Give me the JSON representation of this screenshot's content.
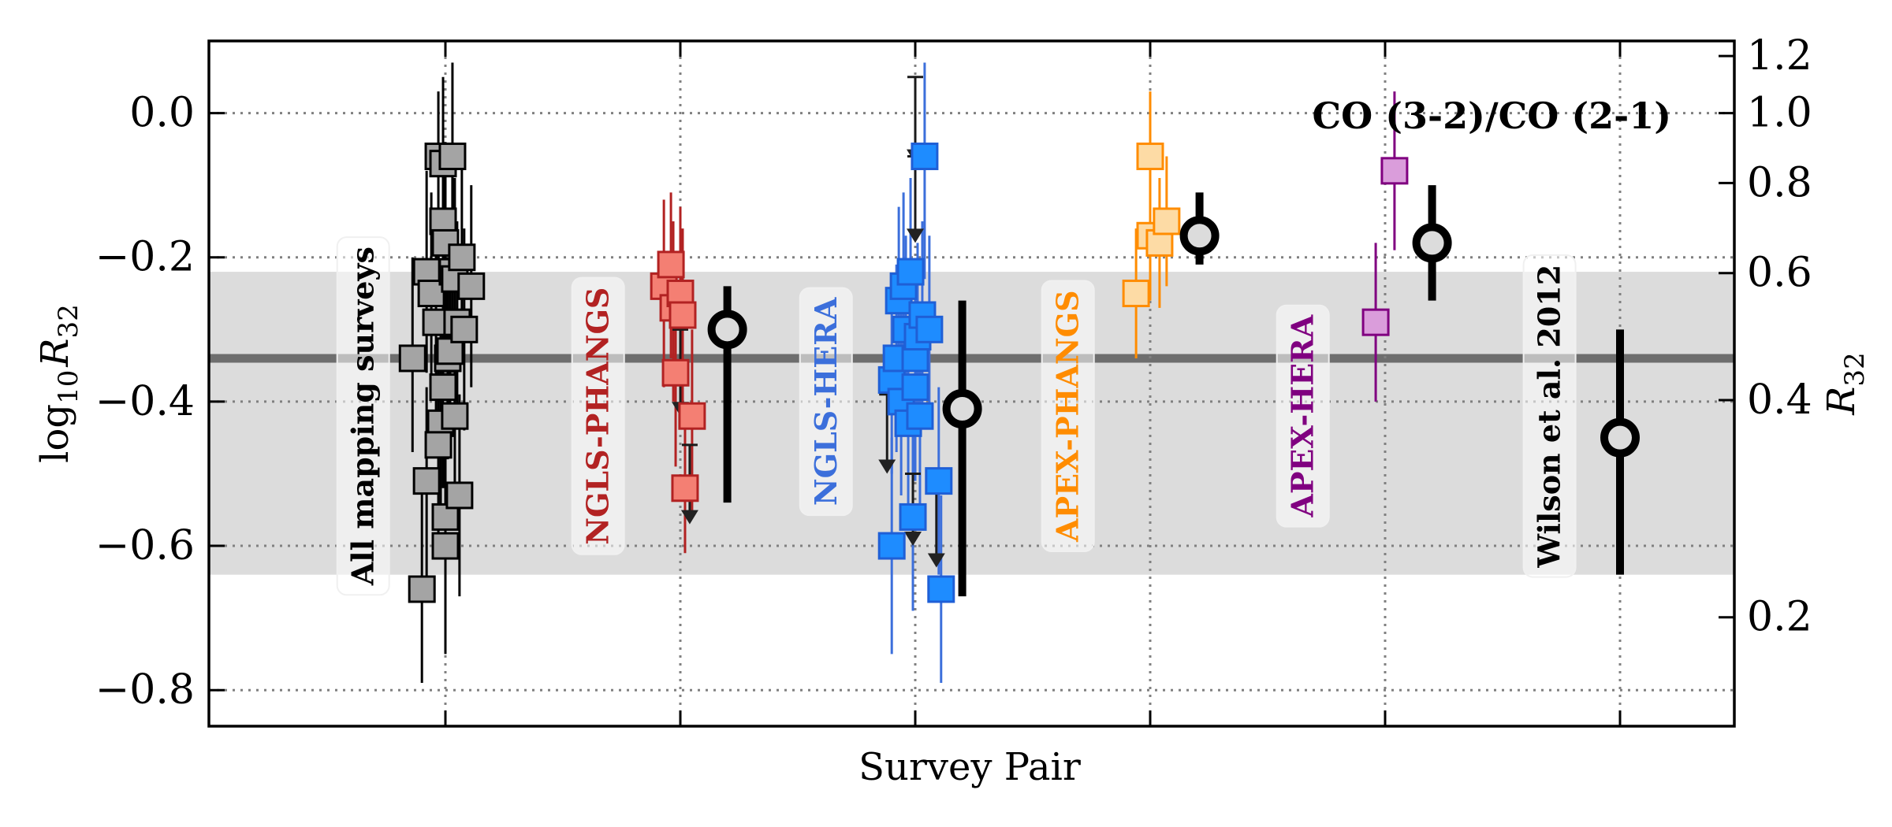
{
  "chart_data": {
    "type": "scatter",
    "title": "CO (3-2)/CO (2-1)",
    "xlabel": "Survey Pair",
    "ylabel_left": {
      "prefix": "log",
      "sub": "10",
      "var": "R",
      "varsub": "32"
    },
    "ylabel_right": {
      "var": "R",
      "varsub": "32"
    },
    "ylim": [
      -0.85,
      0.1
    ],
    "yticks_left": [
      {
        "value": 0.0,
        "label": "0.0"
      },
      {
        "value": -0.2,
        "label": "−0.2"
      },
      {
        "value": -0.4,
        "label": "−0.4"
      },
      {
        "value": -0.6,
        "label": "−0.6"
      },
      {
        "value": -0.8,
        "label": "−0.8"
      }
    ],
    "yticks_right": [
      {
        "value": 1.2,
        "label": "1.2"
      },
      {
        "value": 1.0,
        "label": "1.0"
      },
      {
        "value": 0.8,
        "label": "0.8"
      },
      {
        "value": 0.6,
        "label": "0.6"
      },
      {
        "value": 0.4,
        "label": "0.4"
      },
      {
        "value": 0.2,
        "label": "0.2"
      }
    ],
    "xgrid": [
      0,
      1,
      2,
      3,
      4,
      5
    ],
    "xlim": [
      -1,
      5.5
    ],
    "grid": true,
    "reference": {
      "median": -0.34,
      "band": [
        -0.64,
        -0.22
      ],
      "line_color": "#6e6e6e",
      "band_color": "#dcdcdc"
    },
    "series": [
      {
        "name": "All mapping surveys",
        "label_color": "#000000",
        "fill": "#a4a4a4",
        "edge": "#000000",
        "err": "#000000",
        "label_x": -0.35,
        "label_y": -0.42,
        "points": [
          {
            "x": -0.1,
            "y": -0.66,
            "lo": -0.79,
            "hi": -0.52
          },
          {
            "x": -0.08,
            "y": -0.51,
            "lo": -0.65,
            "hi": -0.38
          },
          {
            "x": -0.14,
            "y": -0.34,
            "lo": -0.47,
            "hi": -0.2
          },
          {
            "x": -0.08,
            "y": -0.22,
            "lo": -0.36,
            "hi": -0.08
          },
          {
            "x": -0.06,
            "y": -0.25,
            "lo": -0.39,
            "hi": -0.11
          },
          {
            "x": -0.04,
            "y": -0.29,
            "lo": -0.43,
            "hi": -0.15
          },
          {
            "x": -0.03,
            "y": -0.06,
            "lo": -0.21,
            "hi": 0.03
          },
          {
            "x": -0.02,
            "y": -0.43,
            "lo": -0.56,
            "hi": -0.3
          },
          {
            "x": -0.01,
            "y": -0.38,
            "lo": -0.52,
            "hi": -0.24
          },
          {
            "x": -0.01,
            "y": -0.15,
            "lo": -0.29,
            "hi": -0.01
          },
          {
            "x": 0.0,
            "y": -0.18,
            "lo": -0.32,
            "hi": -0.04
          },
          {
            "x": -0.01,
            "y": -0.07,
            "lo": -0.21,
            "hi": 0.05
          },
          {
            "x": 0.0,
            "y": -0.6,
            "lo": -0.75,
            "hi": -0.46
          },
          {
            "x": 0.0,
            "y": -0.56,
            "lo": -0.7,
            "hi": -0.43
          },
          {
            "x": 0.01,
            "y": -0.34,
            "lo": -0.48,
            "hi": -0.2
          },
          {
            "x": 0.02,
            "y": -0.33,
            "lo": -0.47,
            "hi": -0.19
          },
          {
            "x": 0.03,
            "y": -0.22,
            "lo": -0.36,
            "hi": -0.08
          },
          {
            "x": 0.03,
            "y": -0.06,
            "lo": -0.2,
            "hi": 0.07
          },
          {
            "x": 0.04,
            "y": -0.23,
            "lo": -0.37,
            "hi": -0.09
          },
          {
            "x": 0.04,
            "y": -0.42,
            "lo": -0.56,
            "hi": -0.28
          },
          {
            "x": 0.05,
            "y": -0.29,
            "lo": -0.43,
            "hi": -0.15
          },
          {
            "x": 0.06,
            "y": -0.53,
            "lo": -0.67,
            "hi": -0.39
          },
          {
            "x": 0.07,
            "y": -0.2,
            "lo": -0.34,
            "hi": -0.06
          },
          {
            "x": 0.08,
            "y": -0.3,
            "lo": -0.44,
            "hi": -0.16
          },
          {
            "x": 0.11,
            "y": -0.24,
            "lo": -0.38,
            "hi": -0.1
          },
          {
            "x": -0.03,
            "y": -0.46,
            "lo": -0.59,
            "hi": -0.33
          }
        ],
        "mean": {
          "x": 0.0,
          "y": -0.34,
          "lo": -0.34,
          "hi": -0.34
        },
        "show_mean": false
      },
      {
        "name": "NGLS-PHANGS",
        "label_color": "#b22222",
        "fill": "#f47f73",
        "edge": "#b22222",
        "err": "#b22222",
        "label_x": 0.65,
        "label_y": -0.42,
        "points": [
          {
            "x": 0.93,
            "y": -0.24,
            "lo": -0.38,
            "hi": -0.12
          },
          {
            "x": 0.96,
            "y": -0.21,
            "lo": -0.34,
            "hi": -0.11
          },
          {
            "x": 0.97,
            "y": -0.27,
            "lo": -0.4,
            "hi": -0.15
          },
          {
            "x": 0.98,
            "y": -0.36,
            "lo": -0.49,
            "hi": -0.24
          },
          {
            "x": 1.0,
            "y": -0.25,
            "lo": -0.38,
            "hi": -0.13
          },
          {
            "x": 1.01,
            "y": -0.28,
            "lo": -0.42,
            "hi": -0.16
          },
          {
            "x": 1.02,
            "y": -0.52,
            "lo": -0.61,
            "hi": -0.43
          },
          {
            "x": 1.05,
            "y": -0.42,
            "lo": -0.56,
            "hi": -0.3
          }
        ],
        "limits": [
          {
            "x": 1.0,
            "top": -0.3,
            "bottom": -0.42
          },
          {
            "x": 1.04,
            "top": -0.46,
            "bottom": -0.57
          }
        ],
        "mean": {
          "x": 1.2,
          "y": -0.3,
          "lo": -0.54,
          "hi": -0.24
        },
        "show_mean": true
      },
      {
        "name": "NGLS-HERA",
        "label_color": "#3c6fdb",
        "fill": "#1e8cff",
        "edge": "#1f5fd6",
        "err": "#3c6fdb",
        "label_x": 1.62,
        "label_y": -0.4,
        "points": [
          {
            "x": 1.9,
            "y": -0.6,
            "lo": -0.75,
            "hi": -0.45
          },
          {
            "x": 1.9,
            "y": -0.37,
            "lo": -0.5,
            "hi": -0.24
          },
          {
            "x": 1.92,
            "y": -0.34,
            "lo": -0.47,
            "hi": -0.21
          },
          {
            "x": 1.93,
            "y": -0.26,
            "lo": -0.39,
            "hi": -0.13
          },
          {
            "x": 1.94,
            "y": -0.4,
            "lo": -0.53,
            "hi": -0.27
          },
          {
            "x": 1.95,
            "y": -0.24,
            "lo": -0.37,
            "hi": -0.11
          },
          {
            "x": 1.96,
            "y": -0.3,
            "lo": -0.43,
            "hi": -0.17
          },
          {
            "x": 1.97,
            "y": -0.43,
            "lo": -0.56,
            "hi": -0.3
          },
          {
            "x": 1.98,
            "y": -0.22,
            "lo": -0.35,
            "hi": -0.09
          },
          {
            "x": 1.99,
            "y": -0.56,
            "lo": -0.69,
            "hi": -0.43
          },
          {
            "x": 2.0,
            "y": -0.34,
            "lo": -0.47,
            "hi": -0.21
          },
          {
            "x": 2.0,
            "y": -0.38,
            "lo": -0.51,
            "hi": -0.25
          },
          {
            "x": 2.01,
            "y": -0.31,
            "lo": -0.44,
            "hi": -0.18
          },
          {
            "x": 2.02,
            "y": -0.42,
            "lo": -0.55,
            "hi": -0.29
          },
          {
            "x": 2.03,
            "y": -0.28,
            "lo": -0.41,
            "hi": -0.15
          },
          {
            "x": 2.04,
            "y": -0.06,
            "lo": -0.23,
            "hi": 0.07
          },
          {
            "x": 2.06,
            "y": -0.3,
            "lo": -0.43,
            "hi": -0.17
          },
          {
            "x": 2.1,
            "y": -0.51,
            "lo": -0.64,
            "hi": -0.38
          },
          {
            "x": 2.11,
            "y": -0.66,
            "lo": -0.79,
            "hi": -0.53
          }
        ],
        "limits": [
          {
            "x": 1.88,
            "top": -0.39,
            "bottom": -0.5
          },
          {
            "x": 1.99,
            "top": -0.5,
            "bottom": -0.6
          },
          {
            "x": 2.0,
            "top": 0.05,
            "bottom": -0.07
          },
          {
            "x": 2.0,
            "top": -0.06,
            "bottom": -0.18
          },
          {
            "x": 2.09,
            "top": -0.52,
            "bottom": -0.63
          }
        ],
        "mean": {
          "x": 2.2,
          "y": -0.41,
          "lo": -0.67,
          "hi": -0.26
        },
        "show_mean": true
      },
      {
        "name": "APEX-PHANGS",
        "label_color": "#ff8c00",
        "fill": "#fddba5",
        "edge": "#ff8c00",
        "err": "#ff8c00",
        "label_x": 2.65,
        "label_y": -0.42,
        "points": [
          {
            "x": 2.94,
            "y": -0.25,
            "lo": -0.34,
            "hi": -0.16
          },
          {
            "x": 3.0,
            "y": -0.06,
            "lo": -0.15,
            "hi": 0.03
          },
          {
            "x": 3.0,
            "y": -0.17,
            "lo": -0.26,
            "hi": -0.08
          },
          {
            "x": 3.04,
            "y": -0.18,
            "lo": -0.27,
            "hi": -0.09
          },
          {
            "x": 3.07,
            "y": -0.15,
            "lo": -0.24,
            "hi": -0.06
          }
        ],
        "mean": {
          "x": 3.21,
          "y": -0.17,
          "lo": -0.21,
          "hi": -0.11
        },
        "show_mean": true
      },
      {
        "name": "APEX-HERA",
        "label_color": "#800080",
        "fill": "#da9ddb",
        "edge": "#800080",
        "err": "#800080",
        "label_x": 3.65,
        "label_y": -0.42,
        "points": [
          {
            "x": 3.96,
            "y": -0.29,
            "lo": -0.4,
            "hi": -0.18
          },
          {
            "x": 4.04,
            "y": -0.08,
            "lo": -0.19,
            "hi": 0.03
          }
        ],
        "mean": {
          "x": 4.2,
          "y": -0.18,
          "lo": -0.26,
          "hi": -0.1
        },
        "show_mean": true
      },
      {
        "name": "Wilson et al. 2012",
        "label_color": "#000000",
        "fill": "#000000",
        "edge": "#000000",
        "err": "#000000",
        "label_x": 4.7,
        "label_y": -0.42,
        "points": [],
        "mean": {
          "x": 5.0,
          "y": -0.45,
          "lo": -0.64,
          "hi": -0.3
        },
        "show_mean": true
      }
    ]
  }
}
